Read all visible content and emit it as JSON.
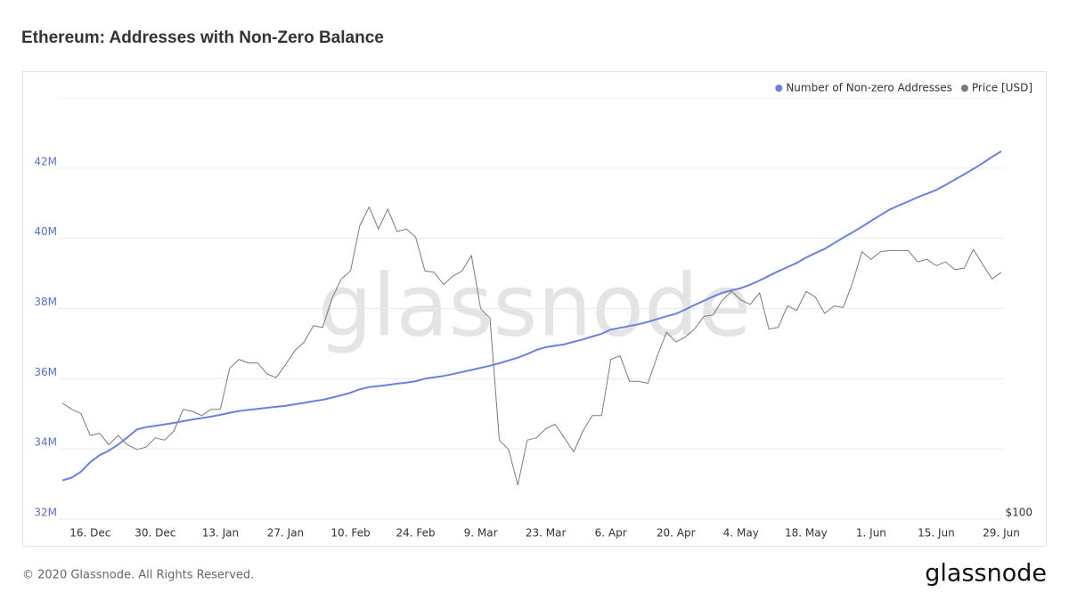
{
  "chart_data": {
    "type": "line",
    "title": "Ethereum: Addresses with Non-Zero Balance",
    "watermark": "glassnode",
    "footer": "© 2020 Glassnode. All Rights Reserved.",
    "logo": "glassnode",
    "categories": [
      null,
      null,
      null,
      "16. Dec",
      null,
      null,
      null,
      null,
      null,
      null,
      "30. Dec",
      null,
      null,
      null,
      null,
      null,
      null,
      "13. Jan",
      null,
      null,
      null,
      null,
      null,
      null,
      "27. Jan",
      null,
      null,
      null,
      null,
      null,
      null,
      "10. Feb",
      null,
      null,
      null,
      null,
      null,
      null,
      "24. Feb",
      null,
      null,
      null,
      null,
      null,
      null,
      "9. Mar",
      null,
      null,
      null,
      null,
      null,
      null,
      "23. Mar",
      null,
      null,
      null,
      null,
      null,
      null,
      "6. Apr",
      null,
      null,
      null,
      null,
      null,
      null,
      "20. Apr",
      null,
      null,
      null,
      null,
      null,
      null,
      "4. May",
      null,
      null,
      null,
      null,
      null,
      null,
      "18. May",
      null,
      null,
      null,
      null,
      null,
      null,
      "1. Jun",
      null,
      null,
      null,
      null,
      null,
      null,
      "15. Jun",
      null,
      null,
      null,
      null,
      null,
      null,
      "29. Jun"
    ],
    "series": [
      {
        "name": "Number of Non-zero Addresses",
        "color": "#6b80e0",
        "axis": "y",
        "values": [
          33100000,
          33180000,
          33350000,
          33620000,
          33820000,
          33950000,
          34120000,
          34330000,
          34550000,
          34620000,
          34660000,
          34700000,
          34740000,
          34790000,
          34840000,
          34880000,
          34920000,
          34970000,
          35030000,
          35080000,
          35110000,
          35140000,
          35170000,
          35200000,
          35230000,
          35270000,
          35310000,
          35360000,
          35400000,
          35460000,
          35530000,
          35600000,
          35700000,
          35760000,
          35790000,
          35820000,
          35860000,
          35890000,
          35930000,
          36000000,
          36040000,
          36080000,
          36130000,
          36190000,
          36250000,
          36310000,
          36370000,
          36440000,
          36520000,
          36600000,
          36700000,
          36820000,
          36900000,
          36940000,
          36980000,
          37050000,
          37120000,
          37200000,
          37280000,
          37400000,
          37450000,
          37500000,
          37550000,
          37620000,
          37700000,
          37780000,
          37850000,
          37970000,
          38100000,
          38220000,
          38340000,
          38450000,
          38520000,
          38580000,
          38680000,
          38800000,
          38930000,
          39060000,
          39180000,
          39300000,
          39450000,
          39580000,
          39700000,
          39860000,
          40020000,
          40170000,
          40330000,
          40500000,
          40660000,
          40820000,
          40940000,
          41050000,
          41170000,
          41270000,
          41380000,
          41520000,
          41670000,
          41820000,
          41980000,
          42140000,
          42320000,
          42480000
        ]
      },
      {
        "name": "Price [USD]",
        "color": "#7a7a7a",
        "axis": "y2",
        "values": [
          147,
          144,
          142,
          132,
          133,
          128,
          132,
          128,
          126,
          127,
          131,
          130,
          134,
          144,
          143,
          141,
          144,
          144,
          165,
          170,
          168,
          168,
          162,
          160,
          167,
          175,
          180,
          190,
          189,
          208,
          222,
          228,
          265,
          282,
          262,
          280,
          260,
          262,
          255,
          228,
          227,
          218,
          224,
          228,
          240,
          201,
          195,
          130,
          126,
          112,
          130,
          131,
          135,
          137,
          131,
          125,
          134,
          141,
          141,
          170,
          172,
          158,
          158,
          157,
          172,
          186,
          180,
          183,
          188,
          196,
          197,
          207,
          213,
          207,
          204,
          212,
          188,
          189,
          203,
          200,
          213,
          209,
          198,
          203,
          202,
          219,
          243,
          237,
          243,
          244,
          244,
          244,
          235,
          237,
          232,
          235,
          229,
          230,
          245,
          233,
          222,
          227
        ]
      }
    ],
    "ylim": [
      32000000,
      44000000
    ],
    "yticks": [
      {
        "value": 32000000,
        "label": "32M"
      },
      {
        "value": 34000000,
        "label": "34M"
      },
      {
        "value": 36000000,
        "label": "36M"
      },
      {
        "value": 38000000,
        "label": "38M"
      },
      {
        "value": 40000000,
        "label": "40M"
      },
      {
        "value": 42000000,
        "label": "42M"
      }
    ],
    "y2lim": [
      100,
      405
    ],
    "y2ticks": [
      {
        "value": 100,
        "label": "$100"
      }
    ],
    "y2_log": true,
    "grid": true,
    "legend": "top-right"
  }
}
